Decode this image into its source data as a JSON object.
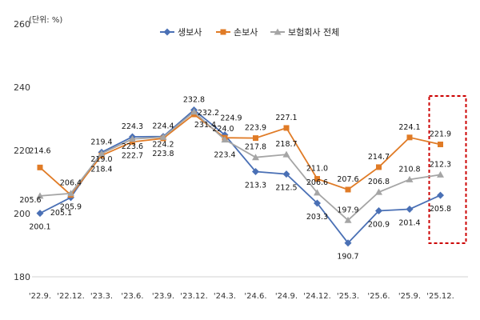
{
  "chart_data": {
    "type": "line",
    "unit_label": "(단위: %)",
    "categories": [
      "'22.9.",
      "'22.12.",
      "'23.3.",
      "'23.6.",
      "'23.9.",
      "'23.12.",
      "'24.3.",
      "'24.6.",
      "'24.9.",
      "'24.12.",
      "'25.3.",
      "'25.6.",
      "'25.9.",
      "'25.12."
    ],
    "ylim": [
      180,
      260
    ],
    "yticks": [
      180,
      200,
      220,
      240,
      260
    ],
    "legend_position": "top",
    "series": [
      {
        "name": "생보사",
        "color": "#4a70b5",
        "marker": "diamond",
        "values": [
          200.1,
          205.1,
          219.4,
          224.3,
          224.4,
          232.8,
          224.9,
          213.3,
          212.5,
          203.3,
          190.7,
          200.9,
          201.4,
          205.8
        ]
      },
      {
        "name": "손보사",
        "color": "#e07b26",
        "marker": "square",
        "values": [
          214.6,
          205.9,
          218.4,
          222.7,
          223.8,
          231.4,
          224.0,
          223.9,
          227.1,
          211.0,
          207.6,
          214.7,
          224.1,
          221.9
        ]
      },
      {
        "name": "보험회사 전체",
        "color": "#a5a5a5",
        "marker": "triangle",
        "values": [
          205.6,
          206.4,
          219.0,
          223.6,
          224.2,
          232.2,
          223.4,
          217.8,
          218.7,
          206.6,
          197.9,
          206.8,
          210.8,
          212.3
        ]
      }
    ],
    "data_labels": [
      {
        "text": "205.6",
        "x": "'22.9.",
        "y": 205.6
      },
      {
        "text": "214.6",
        "x": "'22.9.",
        "y": 214.6
      },
      {
        "text": "200.1",
        "x": "'22.9.",
        "y": 200.1
      },
      {
        "text": "206.4",
        "x": "'22.12.",
        "y": 206.4
      },
      {
        "text": "205.9",
        "x": "'22.12.",
        "y": 205.9
      },
      {
        "text": "205.1",
        "x": "'22.12.",
        "y": 205.1
      },
      {
        "text": "219.4",
        "x": "'23.3.",
        "y": 219.4
      },
      {
        "text": "219.0",
        "x": "'23.3.",
        "y": 219.0
      },
      {
        "text": "218.4",
        "x": "'23.3.",
        "y": 218.4
      },
      {
        "text": "224.3",
        "x": "'23.6.",
        "y": 224.3
      },
      {
        "text": "223.6",
        "x": "'23.6.",
        "y": 223.6
      },
      {
        "text": "222.7",
        "x": "'23.6.",
        "y": 222.7
      },
      {
        "text": "224.4",
        "x": "'23.9.",
        "y": 224.4
      },
      {
        "text": "224.2",
        "x": "'23.9.",
        "y": 224.2
      },
      {
        "text": "223.8",
        "x": "'23.9.",
        "y": 223.8
      },
      {
        "text": "232.8",
        "x": "'23.12.",
        "y": 232.8
      },
      {
        "text": "232.2",
        "x": "'23.12.",
        "y": 232.2
      },
      {
        "text": "231.4",
        "x": "'23.12.",
        "y": 231.4
      },
      {
        "text": "224.9",
        "x": "'24.3.",
        "y": 224.9
      },
      {
        "text": "223.4",
        "x": "'24.3.",
        "y": 223.4
      },
      {
        "text": "224.0",
        "x": "'24.3.",
        "y": 224.0
      },
      {
        "text": "223.9",
        "x": "'24.6.",
        "y": 223.9
      },
      {
        "text": "217.8",
        "x": "'24.6.",
        "y": 217.8
      },
      {
        "text": "213.3",
        "x": "'24.6.",
        "y": 213.3
      },
      {
        "text": "227.1",
        "x": "'24.9.",
        "y": 227.1
      },
      {
        "text": "218.7",
        "x": "'24.9.",
        "y": 218.7
      },
      {
        "text": "212.5",
        "x": "'24.9.",
        "y": 212.5
      },
      {
        "text": "211.0",
        "x": "'24.12.",
        "y": 211.0
      },
      {
        "text": "206.6",
        "x": "'24.12.",
        "y": 206.6
      },
      {
        "text": "203.3",
        "x": "'24.12.",
        "y": 203.3
      },
      {
        "text": "207.6",
        "x": "'25.3.",
        "y": 207.6
      },
      {
        "text": "197.9",
        "x": "'25.3.",
        "y": 197.9
      },
      {
        "text": "190.7",
        "x": "'25.3.",
        "y": 190.7
      },
      {
        "text": "214.7",
        "x": "'25.6.",
        "y": 214.7
      },
      {
        "text": "206.8",
        "x": "'25.6.",
        "y": 206.8
      },
      {
        "text": "200.9",
        "x": "'25.6.",
        "y": 200.9
      },
      {
        "text": "224.1",
        "x": "'25.9.",
        "y": 224.1
      },
      {
        "text": "210.8",
        "x": "'25.9.",
        "y": 210.8
      },
      {
        "text": "201.4",
        "x": "'25.9.",
        "y": 201.4
      },
      {
        "text": "221.9",
        "x": "'25.12.",
        "y": 221.9
      },
      {
        "text": "212.3",
        "x": "'25.12.",
        "y": 212.3
      },
      {
        "text": "205.8",
        "x": "'25.12.",
        "y": 205.8
      }
    ],
    "highlight": {
      "category": "'25.12.",
      "color": "#cc0000",
      "style": "dashed"
    },
    "grid": false
  }
}
